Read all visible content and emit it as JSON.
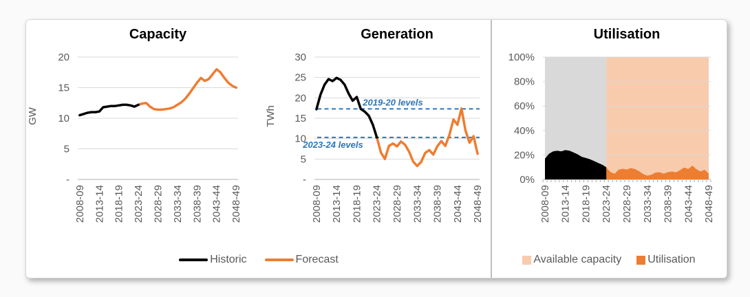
{
  "legends": {
    "historic": "Historic",
    "forecast": "Forecast",
    "available_capacity": "Available capacity",
    "utilisation": "Utilisation"
  },
  "colors": {
    "historic": "#000000",
    "forecast": "#ED7D31",
    "utilisation": "#ED7D31",
    "available_capacity": "#F8CBAD",
    "historic_capacity_band": "#D9D9D9",
    "reference_line": "#2E75B6",
    "gridline": "#D9D9D9",
    "axis_line": "#BFBFBF",
    "minor_tick": "#A6A6A6",
    "axis_text": "#595959"
  },
  "x_axis": {
    "n_categories": 41,
    "tick_labels": [
      "2008-09",
      "2013-14",
      "2018-19",
      "2023-24",
      "2028-29",
      "2033-34",
      "2038-39",
      "2043-44",
      "2048-49"
    ]
  },
  "chart_data": [
    {
      "type": "line",
      "title": "Capacity",
      "ylabel": "GW",
      "ylim": [
        0,
        20
      ],
      "ytick_step": 5,
      "ytick_labels": [
        "20",
        "15",
        "10",
        "5",
        "-"
      ],
      "series": [
        {
          "name": "Historic",
          "color_key": "historic",
          "start_index": 0,
          "values": [
            10.5,
            10.7,
            10.9,
            11.0,
            11.0,
            11.1,
            11.8,
            11.9,
            12.0,
            12.0,
            12.1,
            12.2,
            12.2,
            12.1,
            11.9,
            12.2
          ]
        },
        {
          "name": "Forecast",
          "color_key": "forecast",
          "start_index": 15,
          "values": [
            12.2,
            12.4,
            12.5,
            11.9,
            11.5,
            11.4,
            11.4,
            11.5,
            11.6,
            11.8,
            12.2,
            12.6,
            13.2,
            14.0,
            14.9,
            15.8,
            16.6,
            16.1,
            16.4,
            17.2,
            18.0,
            17.5,
            16.6,
            15.8,
            15.3,
            15.0
          ]
        }
      ]
    },
    {
      "type": "line",
      "title": "Generation",
      "ylabel": "TWh",
      "ylim": [
        0,
        30
      ],
      "ytick_step": 5,
      "ytick_labels": [
        "30",
        "25",
        "20",
        "15",
        "10",
        "5",
        "-"
      ],
      "reference_lines": [
        {
          "label": "2019-20 levels",
          "value": 17.3
        },
        {
          "label": "2023-24 levels",
          "value": 10.3
        }
      ],
      "series": [
        {
          "name": "Historic",
          "color_key": "historic",
          "start_index": 0,
          "values": [
            17.2,
            20.8,
            23.2,
            24.6,
            24.1,
            24.9,
            24.4,
            23.2,
            21.0,
            19.3,
            20.2,
            17.3,
            16.6,
            15.6,
            13.4,
            10.3
          ]
        },
        {
          "name": "Forecast",
          "color_key": "forecast",
          "start_index": 15,
          "values": [
            10.3,
            6.6,
            5.0,
            8.2,
            8.8,
            8.1,
            9.3,
            8.5,
            6.8,
            4.4,
            3.3,
            4.3,
            6.5,
            7.2,
            6.1,
            8.1,
            9.4,
            8.2,
            10.9,
            14.7,
            13.4,
            17.4,
            12.0,
            9.0,
            10.6,
            6.3
          ]
        }
      ]
    },
    {
      "type": "area",
      "title": "Utilisation",
      "ylabel": "",
      "ylim": [
        0,
        100
      ],
      "ytick_step": 20,
      "ytick_labels": [
        "100%",
        "80%",
        "60%",
        "40%",
        "20%",
        "0%"
      ],
      "bands": [
        {
          "name": "available-capacity-historic",
          "color_key": "historic_capacity_band",
          "from_index": 0,
          "to_index": 15,
          "top": 100
        },
        {
          "name": "available-capacity-forecast",
          "color_key": "available_capacity",
          "from_index": 15,
          "to_index": 40,
          "top": 100
        }
      ],
      "series": [
        {
          "name": "Utilisation historic",
          "color_key": "historic",
          "start_index": 0,
          "values": [
            17,
            21,
            23,
            23.5,
            23,
            24,
            23.5,
            22,
            20.5,
            18.5,
            17.5,
            16.5,
            15,
            13.5,
            12,
            10
          ]
        },
        {
          "name": "Utilisation forecast",
          "color_key": "utilisation",
          "start_index": 15,
          "values": [
            9.6,
            6.1,
            4.6,
            7.9,
            8.7,
            8.1,
            9.3,
            8.4,
            6.7,
            4.3,
            3.1,
            3.9,
            5.6,
            5.9,
            4.7,
            5.9,
            6.5,
            5.8,
            7.6,
            9.8,
            8.5,
            11.3,
            8.3,
            6.5,
            7.9,
            4.8
          ]
        }
      ]
    }
  ]
}
